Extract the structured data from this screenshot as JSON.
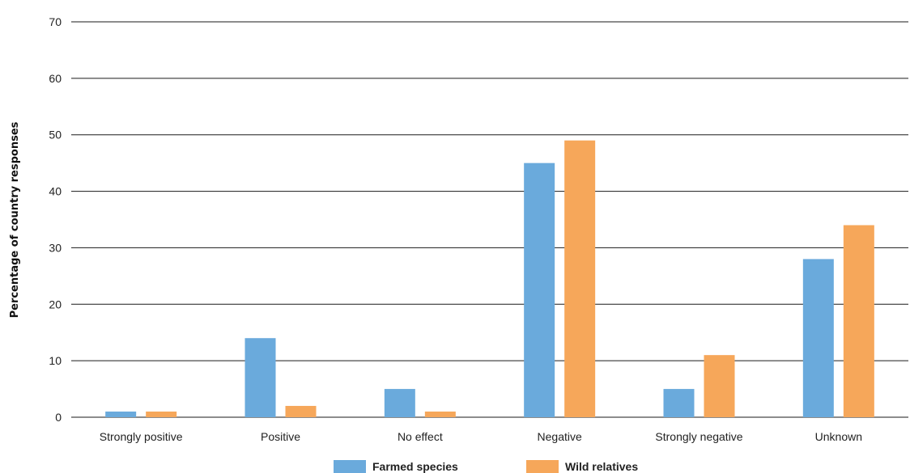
{
  "chart_data": {
    "type": "bar",
    "title": "",
    "xlabel": "",
    "ylabel": "Percentage of country responses",
    "ylim": [
      0,
      70
    ],
    "yticks": [
      0,
      10,
      20,
      30,
      40,
      50,
      60,
      70
    ],
    "grid": true,
    "legend_position": "bottom",
    "categories": [
      "Strongly positive",
      "Positive",
      "No effect",
      "Negative",
      "Strongly negative",
      "Unknown"
    ],
    "series": [
      {
        "name": "Farmed species",
        "color": "#6aaadc",
        "values": [
          1,
          14,
          5,
          45,
          5,
          28
        ]
      },
      {
        "name": "Wild relatives",
        "color": "#f6a75a",
        "values": [
          1,
          2,
          1,
          49,
          11,
          34
        ]
      }
    ]
  }
}
